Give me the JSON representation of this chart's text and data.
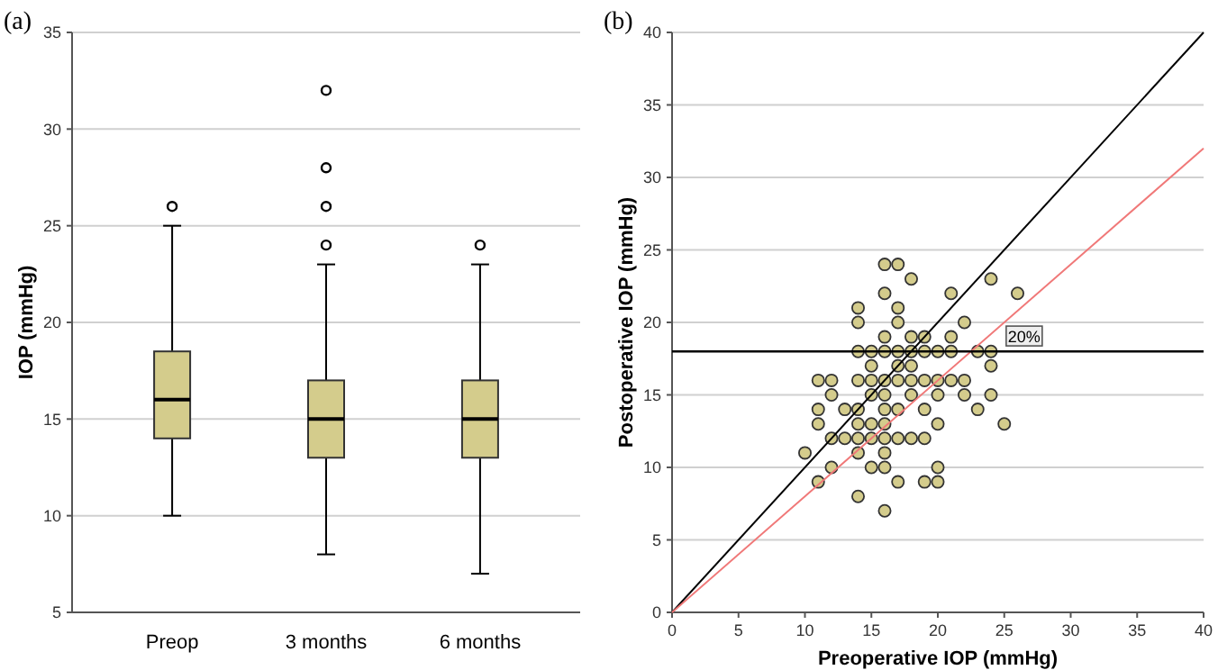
{
  "chart_data": [
    {
      "type": "box",
      "title": "(a)",
      "ylabel": "IOP (mmHg)",
      "categories": [
        "Preop",
        "3 months",
        "6 months"
      ],
      "color": "#d4cc8c",
      "ylim": [
        5,
        35
      ],
      "yticks": [
        5,
        10,
        15,
        20,
        25,
        30,
        35
      ],
      "grid": "y",
      "boxes": [
        {
          "low": 10,
          "q1": 14,
          "median": 16,
          "q3": 18.5,
          "high": 25,
          "outliers": [
            26
          ]
        },
        {
          "low": 8,
          "q1": 13,
          "median": 15,
          "q3": 17,
          "high": 23,
          "outliers": [
            24,
            26,
            28,
            32
          ]
        },
        {
          "low": 7,
          "q1": 13,
          "median": 15,
          "q3": 17,
          "high": 23,
          "outliers": [
            24
          ]
        }
      ]
    },
    {
      "type": "scatter",
      "title": "(b)",
      "xlabel": "Preoperative IOP (mmHg)",
      "ylabel": "Postoperative IOP (mmHg)",
      "xlim": [
        0,
        40
      ],
      "xticks": [
        0,
        5,
        10,
        15,
        20,
        25,
        30,
        35,
        40
      ],
      "ylim": [
        0,
        40
      ],
      "yticks": [
        0,
        5,
        10,
        15,
        20,
        25,
        30,
        35,
        40
      ],
      "grid": "y",
      "ref_lines": [
        {
          "axis": "y",
          "value": 18,
          "color": "#000000"
        }
      ],
      "annotations": [
        {
          "text": "20%",
          "x": 26.5,
          "y": 19
        }
      ],
      "series": [
        {
          "type": "scatter",
          "color": "#d4cc8c",
          "marker": "circle",
          "x": [
            16,
            17,
            18,
            24,
            16,
            21,
            26,
            14,
            17,
            14,
            17,
            22,
            16,
            18,
            19,
            21,
            14,
            15,
            16,
            17,
            18,
            19,
            20,
            21,
            23,
            24,
            15,
            17,
            18,
            24,
            11,
            12,
            14,
            15,
            16,
            17,
            18,
            19,
            20,
            21,
            22,
            12,
            15,
            16,
            18,
            20,
            22,
            24,
            11,
            13,
            14,
            16,
            17,
            19,
            23,
            11,
            14,
            15,
            16,
            20,
            25,
            12,
            13,
            14,
            15,
            16,
            17,
            18,
            19,
            10,
            14,
            16,
            12,
            15,
            16,
            20,
            11,
            17,
            19,
            20,
            14,
            16
          ],
          "values": [
            24,
            24,
            23,
            23,
            22,
            22,
            22,
            21,
            21,
            20,
            20,
            20,
            19,
            19,
            19,
            19,
            18,
            18,
            18,
            18,
            18,
            18,
            18,
            18,
            18,
            18,
            17,
            17,
            17,
            17,
            16,
            16,
            16,
            16,
            16,
            16,
            16,
            16,
            16,
            16,
            16,
            15,
            15,
            15,
            15,
            15,
            15,
            15,
            14,
            14,
            14,
            14,
            14,
            14,
            14,
            13,
            13,
            13,
            13,
            13,
            13,
            12,
            12,
            12,
            12,
            12,
            12,
            12,
            12,
            11,
            11,
            11,
            10,
            10,
            10,
            10,
            9,
            9,
            9,
            9,
            8,
            7
          ]
        },
        {
          "type": "line",
          "color": "#000000",
          "x": [
            0,
            40
          ],
          "values": [
            0,
            40
          ]
        },
        {
          "type": "line",
          "color": "#f07878",
          "x": [
            0,
            40
          ],
          "values": [
            0,
            32
          ]
        }
      ]
    }
  ]
}
